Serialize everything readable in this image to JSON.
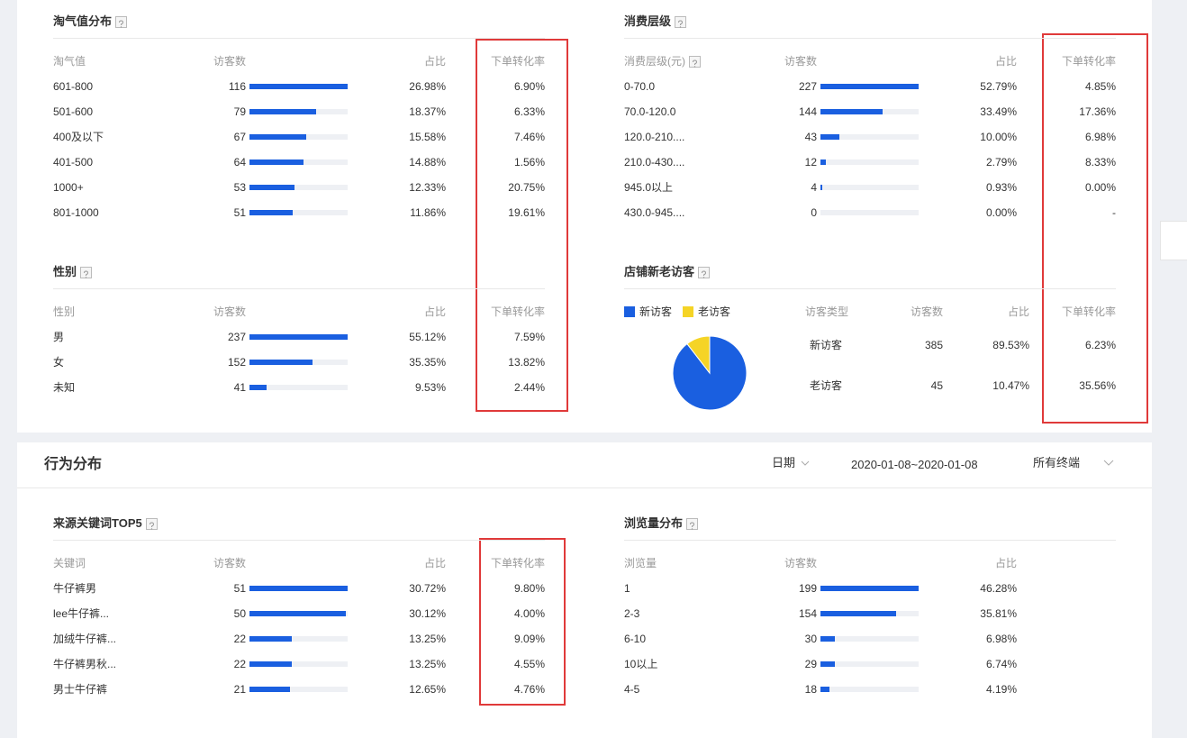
{
  "taoqi": {
    "title": "淘气值分布",
    "columns": [
      "淘气值",
      "访客数",
      "占比",
      "下单转化率"
    ],
    "rows": [
      {
        "label": "601-800",
        "visitors": 116,
        "share": "26.98%",
        "rate": "6.90%"
      },
      {
        "label": "501-600",
        "visitors": 79,
        "share": "18.37%",
        "rate": "6.33%"
      },
      {
        "label": "400及以下",
        "visitors": 67,
        "share": "15.58%",
        "rate": "7.46%"
      },
      {
        "label": "401-500",
        "visitors": 64,
        "share": "14.88%",
        "rate": "1.56%"
      },
      {
        "label": "1000+",
        "visitors": 53,
        "share": "12.33%",
        "rate": "20.75%"
      },
      {
        "label": "801-1000",
        "visitors": 51,
        "share": "11.86%",
        "rate": "19.61%"
      }
    ]
  },
  "consumption": {
    "title": "消费层级",
    "columns": [
      "消费层级(元)",
      "访客数",
      "占比",
      "下单转化率"
    ],
    "rows": [
      {
        "label": "0-70.0",
        "visitors": 227,
        "share": "52.79%",
        "rate": "4.85%"
      },
      {
        "label": "70.0-120.0",
        "visitors": 144,
        "share": "33.49%",
        "rate": "17.36%"
      },
      {
        "label": "120.0-210....",
        "visitors": 43,
        "share": "10.00%",
        "rate": "6.98%"
      },
      {
        "label": "210.0-430....",
        "visitors": 12,
        "share": "2.79%",
        "rate": "8.33%"
      },
      {
        "label": "945.0以上",
        "visitors": 4,
        "share": "0.93%",
        "rate": "0.00%"
      },
      {
        "label": "430.0-945....",
        "visitors": 0,
        "share": "0.00%",
        "rate": "-"
      }
    ]
  },
  "gender": {
    "title": "性别",
    "columns": [
      "性别",
      "访客数",
      "占比",
      "下单转化率"
    ],
    "rows": [
      {
        "label": "男",
        "visitors": 237,
        "share": "55.12%",
        "rate": "7.59%"
      },
      {
        "label": "女",
        "visitors": 152,
        "share": "35.35%",
        "rate": "13.82%"
      },
      {
        "label": "未知",
        "visitors": 41,
        "share": "9.53%",
        "rate": "2.44%"
      }
    ]
  },
  "newold": {
    "title": "店铺新老访客",
    "legend": [
      "新访客",
      "老访客"
    ],
    "columns": [
      "访客类型",
      "访客数",
      "占比",
      "下单转化率"
    ],
    "rows": [
      {
        "label": "新访客",
        "visitors": 385,
        "share": "89.53%",
        "rate": "6.23%"
      },
      {
        "label": "老访客",
        "visitors": 45,
        "share": "10.47%",
        "rate": "35.56%"
      }
    ]
  },
  "behavior": {
    "title": "行为分布",
    "date_label": "日期",
    "date_range": "2020-01-08~2020-01-08",
    "terminal": "所有终端"
  },
  "keywords": {
    "title": "来源关键词TOP5",
    "columns": [
      "关键词",
      "访客数",
      "占比",
      "下单转化率"
    ],
    "rows": [
      {
        "label": "牛仔裤男",
        "visitors": 51,
        "share": "30.72%",
        "rate": "9.80%"
      },
      {
        "label": "lee牛仔裤...",
        "visitors": 50,
        "share": "30.12%",
        "rate": "4.00%"
      },
      {
        "label": "加绒牛仔裤...",
        "visitors": 22,
        "share": "13.25%",
        "rate": "9.09%"
      },
      {
        "label": "牛仔裤男秋...",
        "visitors": 22,
        "share": "13.25%",
        "rate": "4.55%"
      },
      {
        "label": "男士牛仔裤",
        "visitors": 21,
        "share": "12.65%",
        "rate": "4.76%"
      }
    ]
  },
  "views": {
    "title": "浏览量分布",
    "columns": [
      "浏览量",
      "访客数",
      "占比"
    ],
    "rows": [
      {
        "label": "1",
        "visitors": 199,
        "share": "46.28%"
      },
      {
        "label": "2-3",
        "visitors": 154,
        "share": "35.81%"
      },
      {
        "label": "6-10",
        "visitors": 30,
        "share": "6.98%"
      },
      {
        "label": "10以上",
        "visitors": 29,
        "share": "6.74%"
      },
      {
        "label": "4-5",
        "visitors": 18,
        "share": "4.19%"
      }
    ]
  }
}
